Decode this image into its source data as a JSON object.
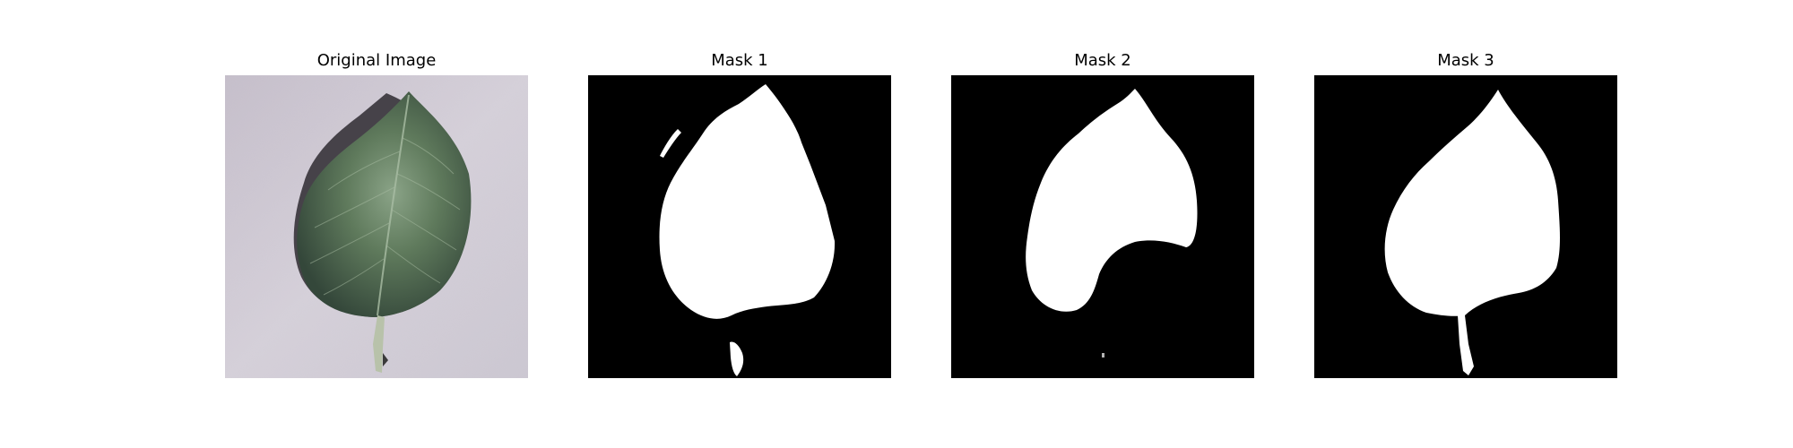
{
  "figure": {
    "panels": [
      {
        "title": "Original Image"
      },
      {
        "title": "Mask 1"
      },
      {
        "title": "Mask 2"
      },
      {
        "title": "Mask 3"
      }
    ]
  },
  "colors": {
    "background": "#ffffff",
    "mask_background": "#000000",
    "mask_foreground": "#ffffff",
    "photo_background": "#c9c3cf",
    "leaf_dark": "#3f5540",
    "leaf_mid": "#5f7a5c",
    "leaf_light": "#8aa387",
    "shadow": "#2e2a30",
    "stem": "#b8c2aa"
  }
}
